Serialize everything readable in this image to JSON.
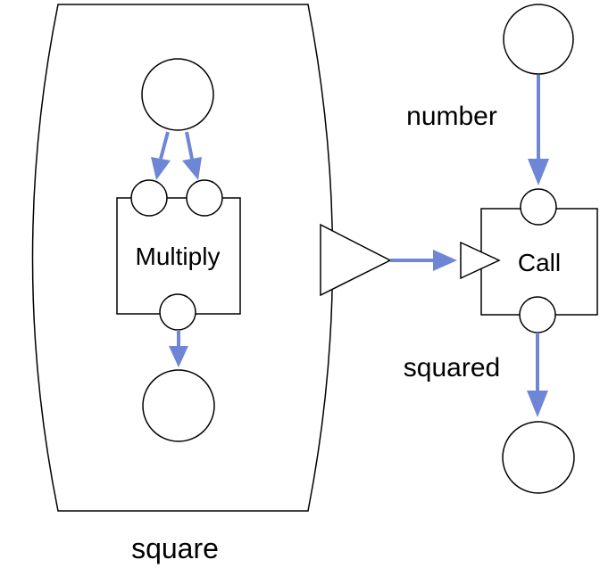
{
  "function": {
    "name": "square",
    "node_label": "Multiply"
  },
  "call": {
    "node_label": "Call",
    "input_label": "number",
    "output_label": "squared"
  },
  "colors": {
    "edge": "#6f86d6",
    "stroke": "#000000",
    "background": "#ffffff"
  }
}
